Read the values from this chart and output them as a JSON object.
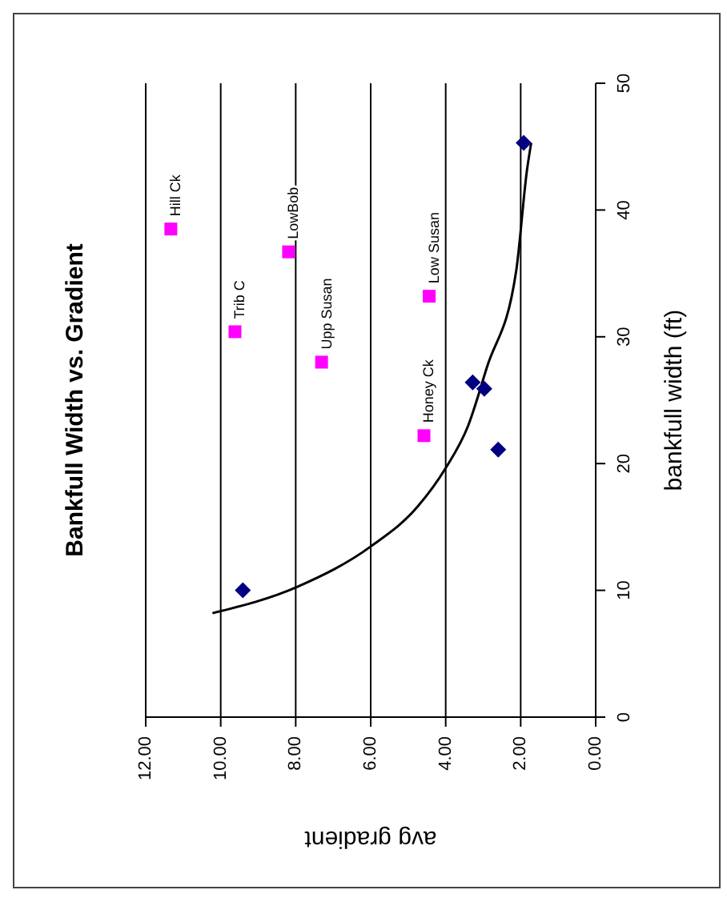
{
  "chart_data": {
    "type": "scatter",
    "title": "Bankfull Width vs. Gradient",
    "xlabel": "avg gradient",
    "ylabel": "bankfull width (ft)",
    "xlim": [
      12,
      0
    ],
    "xticks": [
      {
        "value": 12,
        "label": "12.00"
      },
      {
        "value": 10,
        "label": "10.00"
      },
      {
        "value": 8,
        "label": "8.00"
      },
      {
        "value": 6,
        "label": "6.00"
      },
      {
        "value": 4,
        "label": "4.00"
      },
      {
        "value": 2,
        "label": "2.00"
      },
      {
        "value": 0,
        "label": "0.00"
      }
    ],
    "ylim": [
      0,
      50
    ],
    "yticks": [
      0,
      10,
      20,
      30,
      40,
      50
    ],
    "grid": "x",
    "legend": false,
    "series": [
      {
        "color": "#000080",
        "marker": "diamond",
        "x": [
          1.92,
          3.28,
          2.97,
          2.6,
          9.41
        ],
        "values": [
          45.3,
          26.4,
          25.9,
          21.1,
          10.0
        ]
      },
      {
        "color": "#ff00ff",
        "marker": "square",
        "x": [
          11.33,
          9.62,
          8.19,
          7.31,
          4.44,
          4.58
        ],
        "values": [
          38.5,
          30.4,
          36.7,
          28.0,
          33.2,
          22.2
        ]
      },
      {
        "type": "line",
        "color": "#000000",
        "marker": "none",
        "line_style": "solid",
        "x": [
          10.22,
          7.94,
          5.98,
          4.75,
          4.01,
          3.4,
          2.9,
          2.12,
          1.83,
          1.72
        ],
        "values": [
          8.2,
          10.3,
          13.5,
          16.6,
          19.6,
          23.0,
          27.6,
          35.2,
          43.2,
          45.3
        ]
      }
    ],
    "annotations": [
      {
        "text": "Hill Ck",
        "x": 11.33,
        "y": 38.5
      },
      {
        "text": "Trib C",
        "x": 9.62,
        "y": 30.4
      },
      {
        "text": "LowBob",
        "x": 8.19,
        "y": 36.7
      },
      {
        "text": "Upp Susan",
        "x": 7.31,
        "y": 28.0
      },
      {
        "text": "Low Susan",
        "x": 4.44,
        "y": 33.2
      },
      {
        "text": "Honey Ck",
        "x": 4.58,
        "y": 22.2
      }
    ]
  }
}
